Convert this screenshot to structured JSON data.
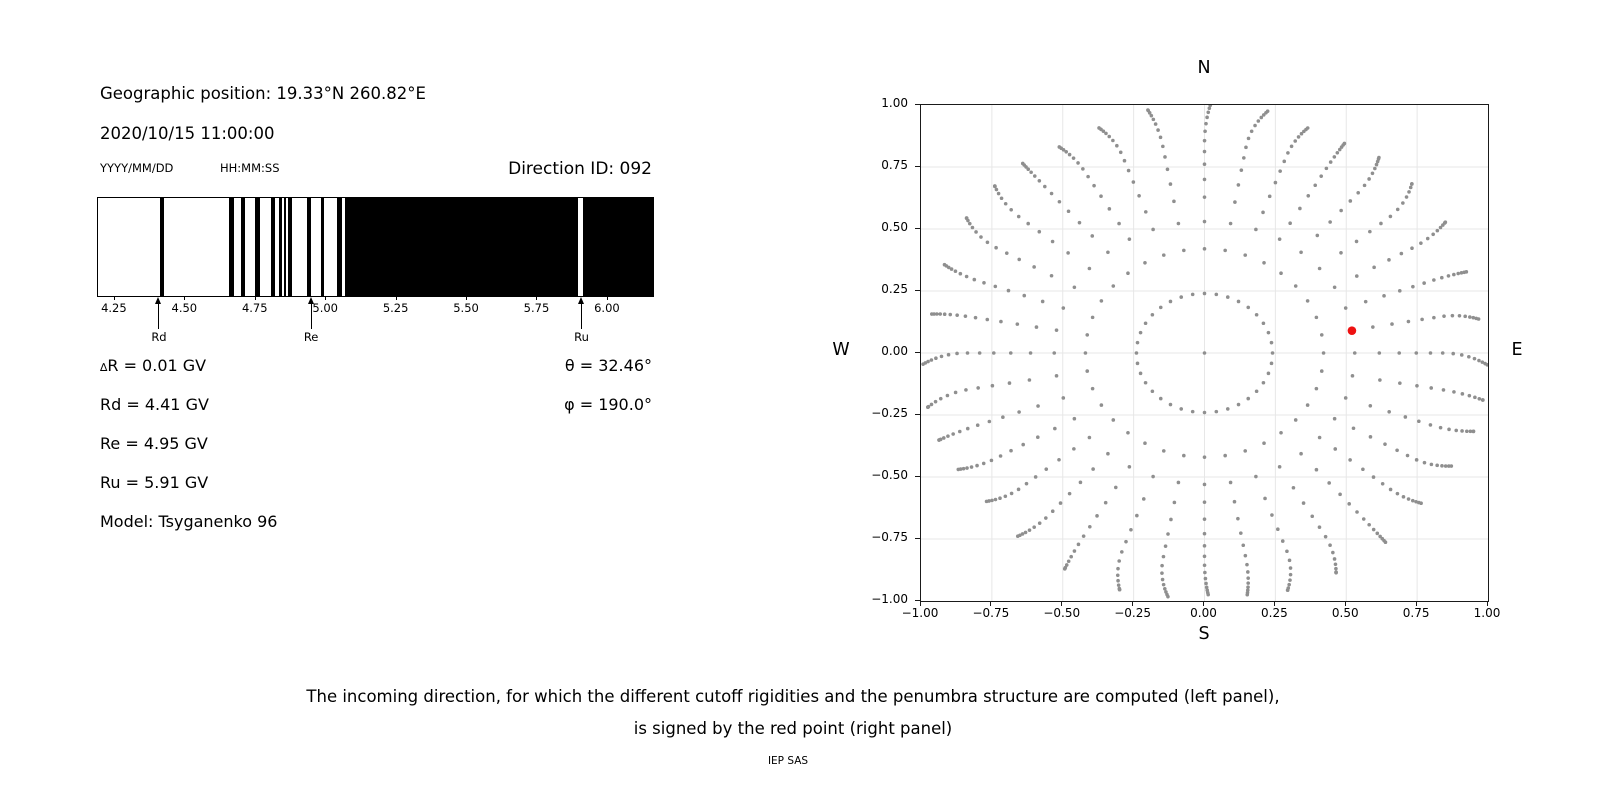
{
  "header": {
    "geographic_position": "Geographic position: 19.33°N 260.82°E",
    "datetime": "2020/10/15 11:00:00",
    "date_format": "YYYY/MM/DD",
    "time_format": "HH:MM:SS",
    "direction_id": "Direction ID: 092"
  },
  "params": {
    "delta_symbol": "∆",
    "delta_rest": "R = 0.01 GV",
    "rd": "Rd = 4.41 GV",
    "re": "Re = 4.95 GV",
    "ru": "Ru = 5.91 GV",
    "model": "Model: Tsyganenko 96",
    "theta": "θ = 32.46°",
    "phi": "φ = 190.0°"
  },
  "caption": {
    "line1": "The incoming direction, for which the different cutoff rigidities and the penumbra structure are computed (left panel),",
    "line2": "is signed by the red point (right panel)",
    "credit": "IEP SAS"
  },
  "colors": {
    "bar_black": "#000000",
    "dot_gray": "#8f8f8f",
    "red_point": "#ee1111",
    "gridline": "#e7e7e7"
  },
  "chart_data": [
    {
      "id": "penumbra-left-panel",
      "type": "bar",
      "description": "Penumbra structure: black vertical bands mark forbidden rigidities",
      "xlim": [
        4.19,
        6.16
      ],
      "x_tick_values": [
        4.25,
        4.5,
        4.75,
        5.0,
        5.25,
        5.5,
        5.75,
        6.0
      ],
      "x_tick_labels": [
        "4.25",
        "4.50",
        "4.75",
        "5.00",
        "5.25",
        "5.50",
        "5.75",
        "6.00"
      ],
      "black_intervals_gv": [
        [
          4.41,
          4.426
        ],
        [
          4.656,
          4.674
        ],
        [
          4.696,
          4.713
        ],
        [
          4.748,
          4.765
        ],
        [
          4.803,
          4.819
        ],
        [
          4.832,
          4.844
        ],
        [
          4.85,
          4.859
        ],
        [
          4.866,
          4.877
        ],
        [
          4.933,
          4.947
        ],
        [
          4.98,
          4.992
        ],
        [
          5.039,
          5.056
        ],
        [
          5.067,
          5.893
        ],
        [
          5.912,
          6.16
        ]
      ],
      "annotations": [
        {
          "label": "Rd",
          "x": 4.41
        },
        {
          "label": "Re",
          "x": 4.95
        },
        {
          "label": "Ru",
          "x": 5.91
        }
      ]
    },
    {
      "id": "direction-map-right-panel",
      "type": "scatter",
      "description": "Grid of computed incoming directions; selected direction shown in red",
      "xlim": [
        -1.0,
        1.0
      ],
      "ylim": [
        -1.0,
        1.0
      ],
      "grid": true,
      "x_tick_labels": [
        "−1.00",
        "−0.75",
        "−0.50",
        "−0.25",
        "0.00",
        "0.25",
        "0.50",
        "0.75",
        "1.00"
      ],
      "y_tick_labels": [
        "1.00",
        "0.75",
        "0.50",
        "0.25",
        "0.00",
        "−0.25",
        "−0.50",
        "−0.75",
        "−1.00"
      ],
      "compass_labels": {
        "top": "N",
        "bottom": "S",
        "left": "W",
        "right": "E"
      },
      "gray_directions": {
        "azimuth_start_deg": 0,
        "azimuth_step_deg": 10,
        "azimuth_count": 36,
        "ray_radii": [
          0.24,
          0.42,
          0.53,
          0.615,
          0.685,
          0.745,
          0.795,
          0.838,
          0.875,
          0.905,
          0.93,
          0.95,
          0.966,
          0.978,
          0.988,
          0.996
        ],
        "center_dot": [
          0,
          0
        ]
      },
      "red_point": {
        "x": 0.52,
        "y": 0.09
      }
    }
  ]
}
